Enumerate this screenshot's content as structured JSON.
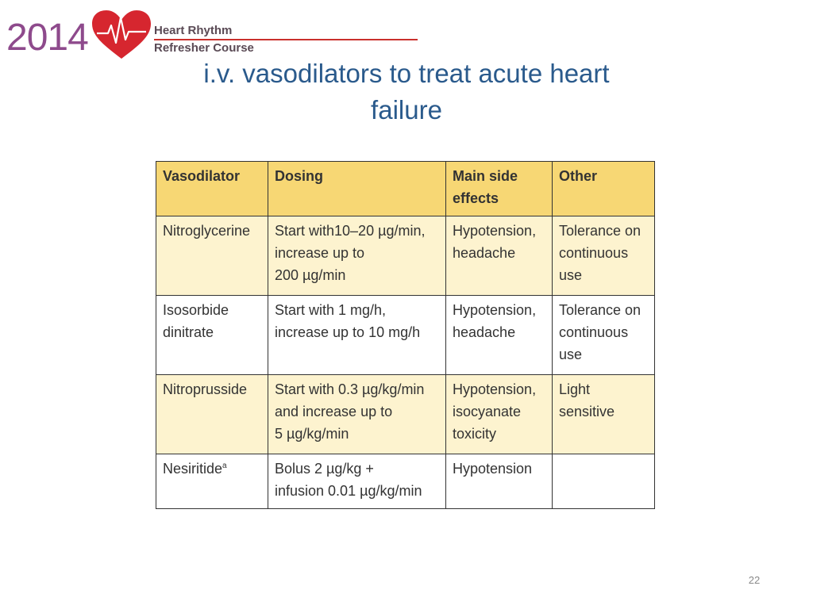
{
  "header": {
    "logo_year": "2014",
    "logo_line1": "Heart Rhythm",
    "logo_line2": "Refresher Course",
    "colors": {
      "year": "#8e4a8c",
      "heart": "#d6262f",
      "rule": "#c9302c",
      "title": "#2a5a8c"
    },
    "icon": "heart-rhythm-logo-icon"
  },
  "slide": {
    "title_line1": "i.v. vasodilators to treat acute heart",
    "title_line2": "failure",
    "page_number": "22"
  },
  "table": {
    "headers": [
      "Vasodilator",
      [
        "Dosing"
      ],
      [
        "Main side",
        "effects"
      ],
      [
        "Other"
      ]
    ],
    "header_col1": "Vasodilator",
    "header_col2": "Dosing",
    "header_col3_line1": "Main side",
    "header_col3_line2": "effects",
    "header_col4": "Other",
    "header_color": "#f7d774",
    "band_color": "#fdf3cf",
    "rows": [
      {
        "vasodilator": [
          "Nitroglycerine"
        ],
        "dosing": [
          "Start with10–20 µg/min,",
          "increase up to",
          "200 µg/min"
        ],
        "side_effects": [
          "Hypotension,",
          "headache"
        ],
        "other": [
          "Tolerance on",
          "continuous",
          "use"
        ]
      },
      {
        "vasodilator": [
          "Isosorbide",
          "dinitrate"
        ],
        "dosing": [
          "Start with 1 mg/h,",
          "increase up to 10 mg/h"
        ],
        "side_effects": [
          "Hypotension,",
          "headache"
        ],
        "other": [
          "Tolerance on",
          "continuous",
          "use"
        ]
      },
      {
        "vasodilator": [
          "Nitroprusside"
        ],
        "dosing": [
          "Start with 0.3 µg/kg/min",
          "and increase up to",
          "5 µg/kg/min"
        ],
        "side_effects": [
          "Hypotension,",
          "isocyanate",
          "toxicity"
        ],
        "other": [
          "Light",
          "sensitive"
        ]
      },
      {
        "vasodilator": [
          "Nesiritide"
        ],
        "vasodilator_sup": "a",
        "dosing": [
          "Bolus 2 µg/kg +",
          "infusion 0.01 µg/kg/min"
        ],
        "side_effects": [
          "Hypotension"
        ],
        "other": []
      }
    ]
  }
}
